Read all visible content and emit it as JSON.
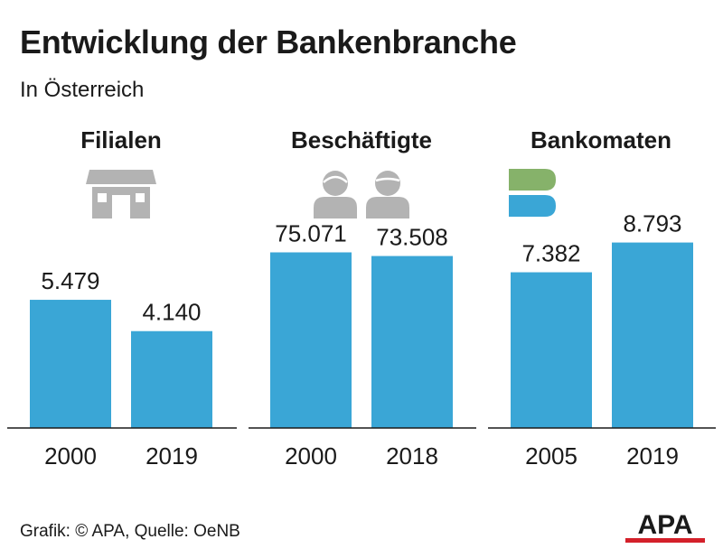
{
  "title": "Entwicklung der Bankenbranche",
  "subtitle": "In Österreich",
  "source": "Grafik: © APA, Quelle: OeNB",
  "logo_text": "APA",
  "colors": {
    "bar": "#3aa6d6",
    "icon_gray": "#b3b3b3",
    "logo_green": "#86b26a",
    "logo_blue": "#3aa6d6",
    "logo_red": "#d4202a"
  },
  "chart_data": [
    {
      "type": "bar",
      "title": "Filialen",
      "icon": "bank-branch-building-icon",
      "categories": [
        "2000",
        "2019"
      ],
      "values": [
        5479,
        4140
      ],
      "value_labels": [
        "5.479",
        "4.140"
      ],
      "ylim": [
        0,
        11000
      ]
    },
    {
      "type": "bar",
      "title": "Beschäftigte",
      "icon": "employees-people-icon",
      "categories": [
        "2000",
        "2018"
      ],
      "values": [
        75071,
        73508
      ],
      "value_labels": [
        "75.071",
        "73.508"
      ],
      "ylim": [
        0,
        110000
      ]
    },
    {
      "type": "bar",
      "title": "Bankomaten",
      "icon": "bankomat-logo-icon",
      "categories": [
        "2005",
        "2019"
      ],
      "values": [
        7382,
        8793
      ],
      "value_labels": [
        "7.382",
        "8.793"
      ],
      "ylim": [
        0,
        12200
      ]
    }
  ]
}
